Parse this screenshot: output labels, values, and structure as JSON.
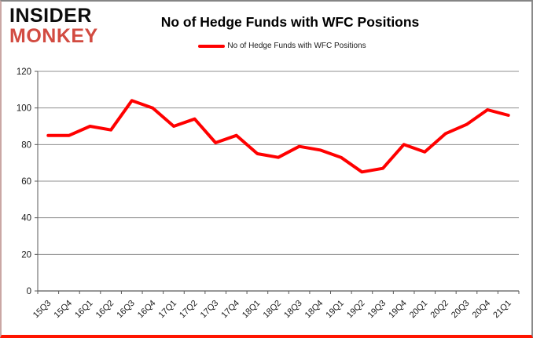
{
  "logo": {
    "line1": "INSIDER",
    "line2": "MONKEY"
  },
  "title": "No of Hedge Funds with WFC Positions",
  "legend": {
    "label": "No of Hedge Funds with WFC Positions",
    "color": "#ff0000"
  },
  "colors": {
    "line": "#ff0000",
    "gridline": "#8f8f8f",
    "axis": "#595959",
    "tick_label": "#1a1a1a",
    "frame_border": "#858585",
    "frame_glow": "#ff1400",
    "logo_top": "#0d0d0d",
    "logo_bottom": "#d24b41"
  },
  "chart_data": {
    "type": "line",
    "title": "No of Hedge Funds with WFC Positions",
    "categories": [
      "15Q3",
      "15Q4",
      "16Q1",
      "16Q2",
      "16Q3",
      "16Q4",
      "17Q1",
      "17Q2",
      "17Q3",
      "17Q4",
      "18Q1",
      "18Q2",
      "18Q3",
      "18Q4",
      "19Q1",
      "19Q2",
      "19Q3",
      "19Q4",
      "20Q1",
      "20Q2",
      "20Q3",
      "20Q4",
      "21Q1"
    ],
    "series": [
      {
        "name": "No of Hedge Funds with WFC Positions",
        "values": [
          85,
          85,
          90,
          88,
          104,
          100,
          90,
          94,
          81,
          85,
          75,
          73,
          79,
          77,
          73,
          65,
          67,
          80,
          76,
          86,
          91,
          99,
          96
        ]
      }
    ],
    "xlabel": "",
    "ylabel": "",
    "ylim": [
      0,
      120
    ],
    "ytick_step": 20,
    "grid": true,
    "legend_position": "top-center",
    "x_label_rotation": -45
  }
}
